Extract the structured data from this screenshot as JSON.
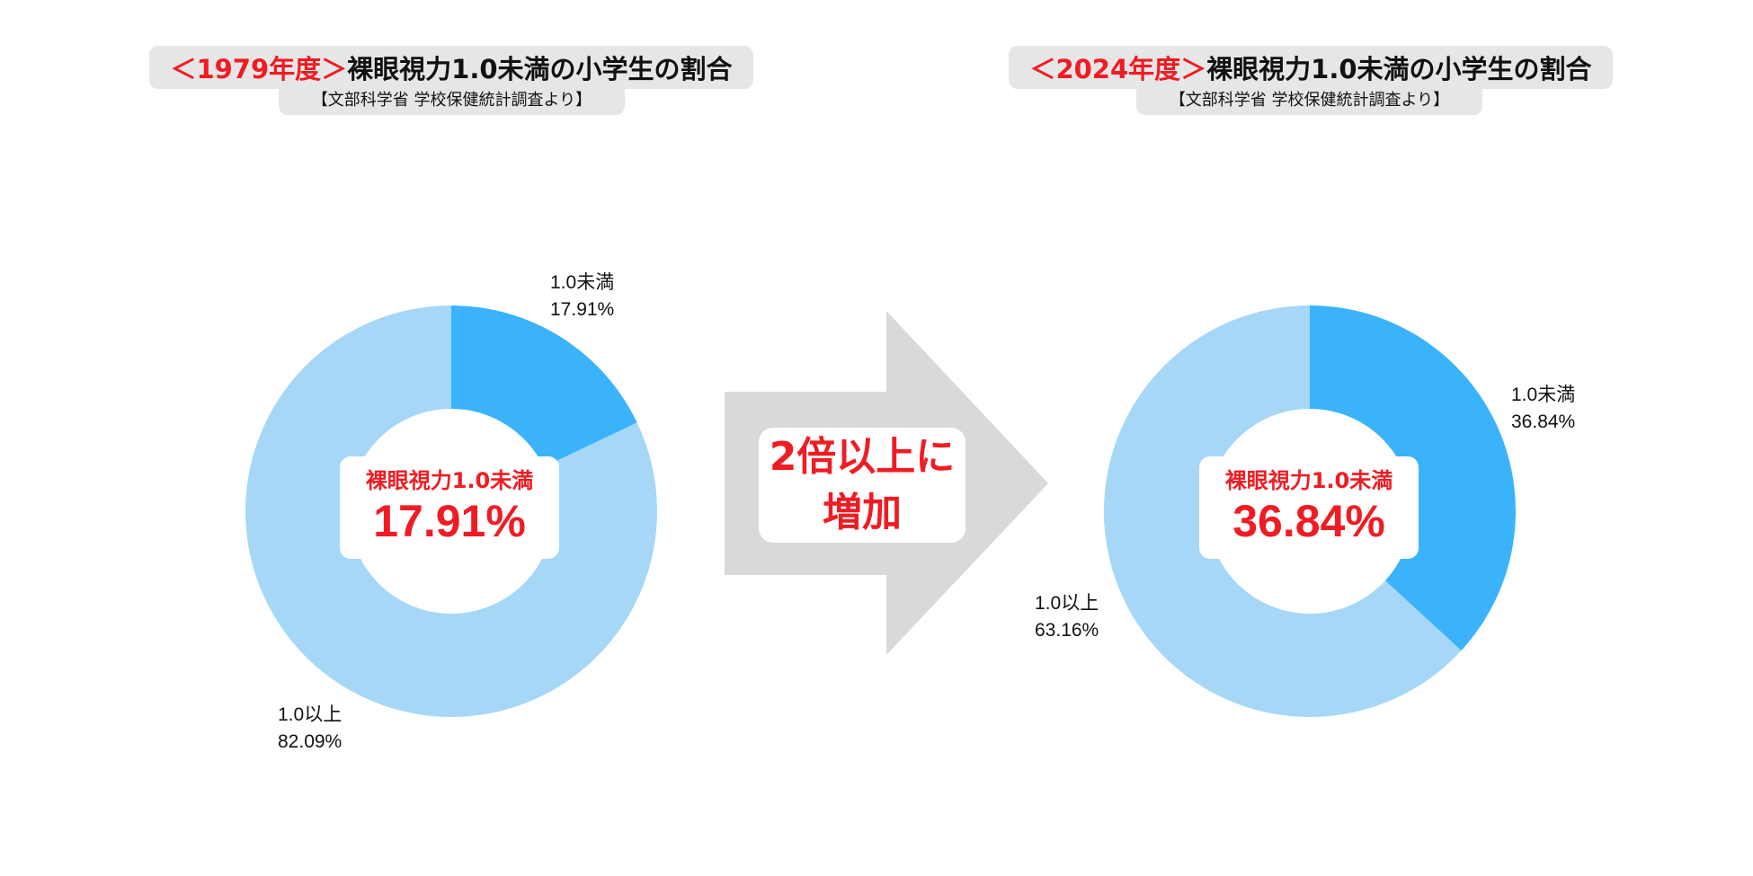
{
  "colors": {
    "under": "#3bb3fb",
    "over": "#a6d7f6",
    "accent": "#ef1c23",
    "arrow": "#d9d9d9"
  },
  "left": {
    "title_year": "＜1979年度＞",
    "title_rest": "裸眼視力1.0未満の小学生の割合",
    "source": "【文部科学省 学校保健統計調査より】",
    "center_label": "裸眼視力1.0未満",
    "center_value": "17.91%",
    "callout_under_name": "1.0未満",
    "callout_under_value": "17.91%",
    "callout_over_name": "1.0以上",
    "callout_over_value": "82.09%"
  },
  "right": {
    "title_year": "＜2024年度＞",
    "title_rest": "裸眼視力1.0未満の小学生の割合",
    "source": "【文部科学省 学校保健統計調査より】",
    "center_label": "裸眼視力1.0未満",
    "center_value": "36.84%",
    "callout_under_name": "1.0未満",
    "callout_under_value": "36.84%",
    "callout_over_name": "1.0以上",
    "callout_over_value": "63.16%"
  },
  "arrow_text": "2倍以上に\n増加",
  "chart_data": [
    {
      "type": "pie",
      "title": "＜1979年度＞裸眼視力1.0未満の小学生の割合",
      "subtitle": "【文部科学省 学校保健統計調査より】",
      "categories": [
        "1.0未満",
        "1.0以上"
      ],
      "values": [
        17.91,
        82.09
      ]
    },
    {
      "type": "pie",
      "title": "＜2024年度＞裸眼視力1.0未満の小学生の割合",
      "subtitle": "【文部科学省 学校保健統計調査より】",
      "categories": [
        "1.0未満",
        "1.0以上"
      ],
      "values": [
        36.84,
        63.16
      ]
    }
  ]
}
